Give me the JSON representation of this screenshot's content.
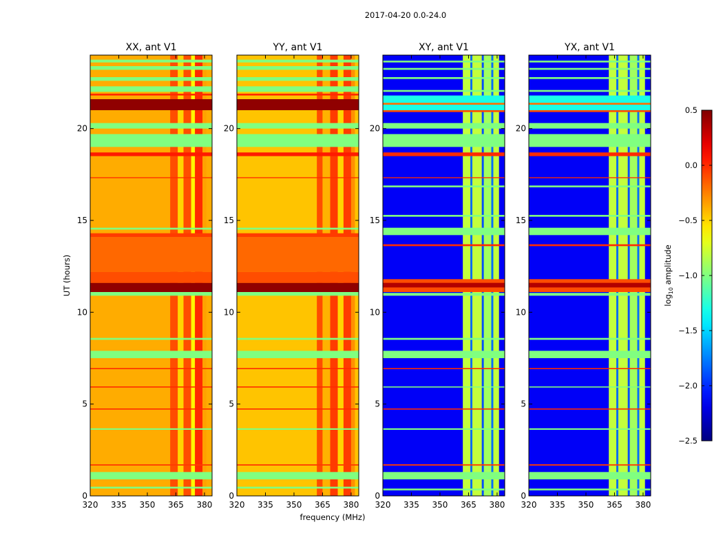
{
  "chart_data": {
    "type": "heatmap",
    "title": "2017-04-20 0.0-24.0",
    "xlabel": "frequency (MHz)",
    "ylabel": "UT (hours)",
    "xlim": [
      320,
      384
    ],
    "ylim": [
      0,
      24
    ],
    "xticks": [
      "320",
      "335",
      "350",
      "365",
      "380"
    ],
    "xtick_values": [
      320,
      335,
      350,
      365,
      380
    ],
    "yticks": [
      "0",
      "5",
      "10",
      "15",
      "20"
    ],
    "ytick_values": [
      0,
      5,
      10,
      15,
      20
    ],
    "colorbar": {
      "label_main": "log",
      "label_sub": "10",
      "label_rest": " amplitude",
      "colormap": "jet",
      "range": [
        -2.5,
        0.5
      ],
      "ticks": [
        "−2.5",
        "−2.0",
        "−1.5",
        "−1.0",
        "−0.5",
        "0.0",
        "0.5"
      ],
      "tick_values": [
        -2.5,
        -2.0,
        -1.5,
        -1.0,
        -0.5,
        0.0,
        0.5
      ]
    },
    "panels": [
      {
        "title": "XX, ant V1",
        "base": -0.38,
        "columns": [
          [
            362,
            366,
            -0.1
          ],
          [
            366,
            369,
            -0.5
          ],
          [
            369,
            373,
            -0.1
          ],
          [
            373,
            375,
            -0.6
          ],
          [
            375,
            379,
            0.0
          ],
          [
            379,
            381,
            -0.35
          ]
        ],
        "rows": [
          [
            0.4,
            0.5,
            -1.0
          ],
          [
            0.9,
            1.3,
            -1.0
          ],
          [
            1.65,
            1.72,
            -0.05
          ],
          [
            3.6,
            3.68,
            -1.0
          ],
          [
            4.7,
            4.76,
            0.0
          ],
          [
            5.9,
            5.96,
            0.0
          ],
          [
            6.9,
            6.96,
            0.0
          ],
          [
            7.5,
            7.9,
            -1.0
          ],
          [
            8.5,
            8.6,
            -1.0
          ],
          [
            10.9,
            11.1,
            -1.0
          ],
          [
            11.1,
            11.6,
            0.45
          ],
          [
            11.6,
            12.2,
            -0.1
          ],
          [
            12.2,
            14.1,
            -0.18
          ],
          [
            14.1,
            14.3,
            -0.05
          ],
          [
            14.5,
            14.6,
            -1.0
          ],
          [
            17.3,
            17.35,
            0.0
          ],
          [
            18.5,
            18.7,
            0.05
          ],
          [
            19.0,
            19.7,
            -1.0
          ],
          [
            20.0,
            20.3,
            -1.0
          ],
          [
            21.0,
            21.6,
            0.45
          ],
          [
            21.8,
            21.9,
            0.0
          ],
          [
            22.0,
            22.3,
            -1.0
          ],
          [
            22.6,
            22.8,
            -1.0
          ],
          [
            23.2,
            23.4,
            -1.0
          ],
          [
            23.6,
            23.75,
            -1.0
          ]
        ]
      },
      {
        "title": "YY, ant V1",
        "base": -0.45,
        "columns": [
          [
            362,
            365,
            -0.1
          ],
          [
            365,
            369,
            -0.4
          ],
          [
            369,
            373,
            -0.05
          ],
          [
            373,
            376,
            -0.5
          ],
          [
            376,
            380,
            -0.05
          ],
          [
            380,
            382,
            -0.3
          ]
        ],
        "rows": [
          [
            0.4,
            0.5,
            -1.0
          ],
          [
            0.9,
            1.3,
            -1.0
          ],
          [
            1.65,
            1.72,
            -0.05
          ],
          [
            3.6,
            3.68,
            -1.0
          ],
          [
            4.7,
            4.76,
            0.0
          ],
          [
            5.9,
            5.96,
            0.0
          ],
          [
            6.9,
            6.96,
            0.0
          ],
          [
            7.5,
            7.9,
            -1.0
          ],
          [
            8.5,
            8.6,
            -1.0
          ],
          [
            10.9,
            11.1,
            -1.0
          ],
          [
            11.1,
            11.6,
            0.45
          ],
          [
            11.6,
            12.2,
            -0.1
          ],
          [
            12.2,
            14.1,
            -0.18
          ],
          [
            14.1,
            14.3,
            -0.05
          ],
          [
            14.5,
            14.6,
            -1.0
          ],
          [
            17.3,
            17.35,
            0.0
          ],
          [
            18.5,
            18.7,
            0.05
          ],
          [
            19.0,
            19.7,
            -1.0
          ],
          [
            20.0,
            20.3,
            -1.0
          ],
          [
            21.0,
            21.6,
            0.45
          ],
          [
            21.8,
            21.9,
            0.0
          ],
          [
            22.0,
            22.3,
            -1.0
          ],
          [
            22.6,
            22.8,
            -1.0
          ],
          [
            23.2,
            23.4,
            -1.0
          ],
          [
            23.6,
            23.75,
            -1.0
          ]
        ]
      },
      {
        "title": "XY, ant V1",
        "base": -2.15,
        "columns": [
          [
            362,
            366,
            -0.8
          ],
          [
            366,
            367,
            -1.8
          ],
          [
            367,
            372,
            -0.8
          ],
          [
            372,
            373,
            -1.9
          ],
          [
            373,
            377,
            -0.9
          ],
          [
            377,
            378,
            -1.8
          ],
          [
            378,
            381,
            -0.8
          ]
        ],
        "rows": [
          [
            0.3,
            0.4,
            -1.0
          ],
          [
            0.9,
            1.3,
            -1.0
          ],
          [
            1.65,
            1.72,
            -0.05
          ],
          [
            3.6,
            3.68,
            -1.0
          ],
          [
            4.7,
            4.76,
            0.0
          ],
          [
            5.9,
            5.96,
            -1.0
          ],
          [
            6.9,
            6.96,
            0.0
          ],
          [
            7.5,
            7.9,
            -1.0
          ],
          [
            8.5,
            8.6,
            -1.0
          ],
          [
            10.9,
            11.05,
            -1.0
          ],
          [
            11.1,
            11.8,
            -0.1
          ],
          [
            11.35,
            11.6,
            0.35
          ],
          [
            13.6,
            13.7,
            0.0
          ],
          [
            14.2,
            14.6,
            -1.0
          ],
          [
            15.2,
            15.3,
            -1.0
          ],
          [
            16.8,
            16.9,
            -1.0
          ],
          [
            17.3,
            17.35,
            0.0
          ],
          [
            18.5,
            18.7,
            0.0
          ],
          [
            19.0,
            19.7,
            -1.0
          ],
          [
            20.0,
            20.3,
            -1.0
          ],
          [
            20.9,
            21.0,
            -0.1
          ],
          [
            21.0,
            21.8,
            -1.3
          ],
          [
            21.3,
            21.4,
            -0.2
          ],
          [
            22.0,
            22.1,
            -1.0
          ],
          [
            22.7,
            22.8,
            -1.0
          ],
          [
            23.2,
            23.3,
            -1.0
          ],
          [
            23.6,
            23.7,
            -1.0
          ]
        ]
      },
      {
        "title": "YX, ant V1",
        "base": -2.15,
        "columns": [
          [
            362,
            366,
            -0.8
          ],
          [
            366,
            367,
            -1.8
          ],
          [
            367,
            372,
            -0.8
          ],
          [
            372,
            373,
            -1.9
          ],
          [
            373,
            377,
            -0.9
          ],
          [
            377,
            378,
            -1.8
          ],
          [
            378,
            381,
            -0.8
          ]
        ],
        "rows": [
          [
            0.3,
            0.4,
            -1.0
          ],
          [
            0.9,
            1.3,
            -1.0
          ],
          [
            1.65,
            1.72,
            -0.05
          ],
          [
            3.6,
            3.68,
            -1.0
          ],
          [
            4.7,
            4.76,
            0.0
          ],
          [
            5.9,
            5.96,
            -1.0
          ],
          [
            6.9,
            6.96,
            0.0
          ],
          [
            7.5,
            7.9,
            -1.0
          ],
          [
            8.5,
            8.6,
            -1.0
          ],
          [
            10.9,
            11.05,
            -1.0
          ],
          [
            11.1,
            11.8,
            -0.1
          ],
          [
            11.35,
            11.6,
            0.35
          ],
          [
            13.6,
            13.7,
            0.0
          ],
          [
            14.2,
            14.6,
            -1.0
          ],
          [
            15.2,
            15.3,
            -1.0
          ],
          [
            16.8,
            16.9,
            -1.0
          ],
          [
            17.3,
            17.35,
            0.0
          ],
          [
            18.5,
            18.7,
            0.0
          ],
          [
            19.0,
            19.7,
            -1.0
          ],
          [
            20.0,
            20.3,
            -1.0
          ],
          [
            20.9,
            21.0,
            -0.1
          ],
          [
            21.0,
            21.8,
            -1.3
          ],
          [
            21.3,
            21.4,
            -0.2
          ],
          [
            22.0,
            22.1,
            -1.0
          ],
          [
            22.7,
            22.8,
            -1.0
          ],
          [
            23.2,
            23.3,
            -1.0
          ],
          [
            23.6,
            23.7,
            -1.0
          ]
        ]
      }
    ]
  }
}
